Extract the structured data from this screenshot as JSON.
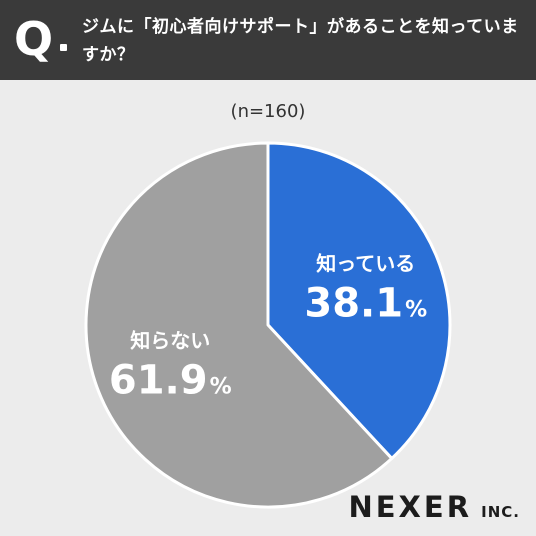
{
  "header": {
    "q_mark": "Q",
    "question": "ジムに「初心者向けサポート」があることを知っていますか？"
  },
  "sample_size": "(n=160)",
  "chart_data": {
    "type": "pie",
    "title": "",
    "start": "12 o'clock, clockwise",
    "slices": [
      {
        "label": "知っている",
        "value": 38.1,
        "value_text": "38.1",
        "unit": "%",
        "color": "#2a6fd6"
      },
      {
        "label": "知らない",
        "value": 61.9,
        "value_text": "61.9",
        "unit": "%",
        "color": "#a0a0a0"
      }
    ],
    "border_color": "#ffffff"
  },
  "logo": {
    "main": "NEXER",
    "sub": "INC."
  }
}
